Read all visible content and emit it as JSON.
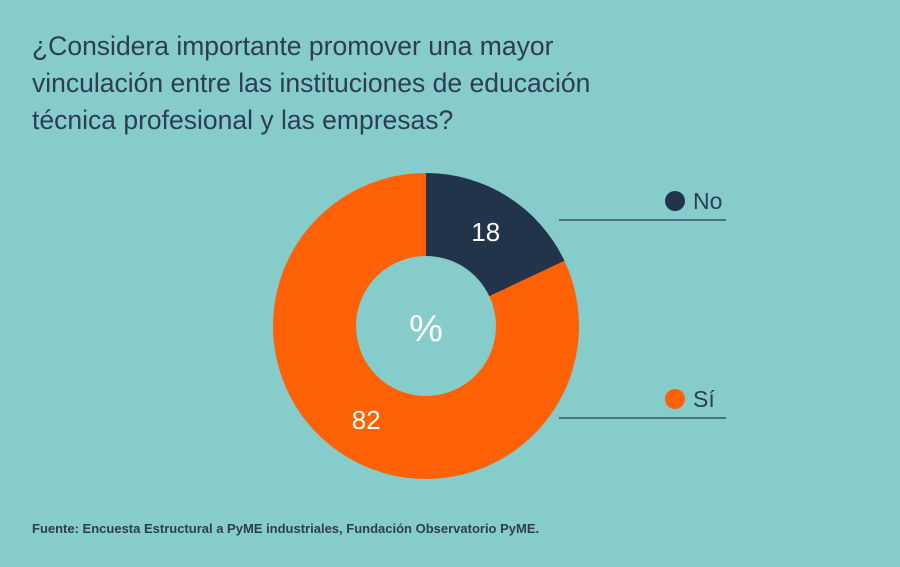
{
  "title": "¿Considera importante promover una mayor vinculación entre las instituciones de educación técnica profesional y las empresas?",
  "center_label": "%",
  "source": "Fuente: Encuesta Estructural a PyME industriales, Fundación Observatorio PyME.",
  "colors": {
    "background": "#85cccb",
    "no": "#22344a",
    "si": "#ff6107",
    "text": "#2d3e50",
    "value_text": "#ffffff"
  },
  "chart_data": {
    "type": "pie",
    "donut": true,
    "title": "¿Considera importante promover una mayor vinculación entre las instituciones de educación técnica profesional y las empresas?",
    "unit": "%",
    "categories": [
      "No",
      "Sí"
    ],
    "values": [
      18,
      82
    ],
    "legend_placement": "right"
  }
}
